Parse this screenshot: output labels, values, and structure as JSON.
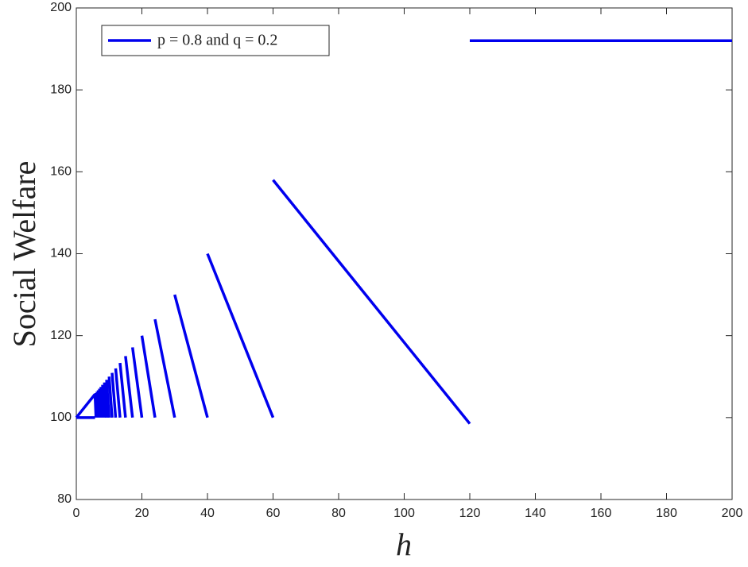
{
  "chart_data": {
    "type": "line",
    "xlabel": "h",
    "ylabel": "Social Welfare",
    "x": [
      0,
      5.71,
      null,
      0,
      5.71,
      null,
      5.71,
      6,
      null,
      6,
      6.32,
      null,
      6.32,
      6.67,
      null,
      6.67,
      7.06,
      null,
      7.06,
      7.5,
      null,
      7.5,
      8,
      null,
      8,
      8.57,
      null,
      8.57,
      9.23,
      null,
      9.23,
      10,
      null,
      10,
      10.91,
      null,
      10.91,
      12,
      null,
      12,
      13.33,
      null,
      13.33,
      15,
      null,
      15,
      17.14,
      null,
      17.14,
      20,
      null,
      20,
      24,
      null,
      24,
      30,
      null,
      30,
      40,
      null,
      40,
      60,
      null,
      60,
      120,
      null,
      120,
      200
    ],
    "series": [
      {
        "name": "p = 0.8 and q = 0.2",
        "color": "#0000ee",
        "values": [
          100,
          105.71,
          null,
          100,
          100,
          null,
          105.71,
          100,
          null,
          106,
          100,
          null,
          106.32,
          100,
          null,
          106.67,
          100,
          null,
          107.06,
          100,
          null,
          107.5,
          100,
          null,
          108,
          100,
          null,
          108.57,
          100,
          null,
          109.23,
          100,
          null,
          110,
          100,
          null,
          110.91,
          100,
          null,
          112,
          100,
          null,
          113.33,
          100,
          null,
          115,
          100,
          null,
          117.14,
          100,
          null,
          120,
          100,
          null,
          124,
          100,
          null,
          130,
          100,
          null,
          140,
          100,
          null,
          158,
          98.5,
          null,
          192,
          192
        ]
      }
    ],
    "xlim": [
      0,
      200
    ],
    "xticks": [
      0,
      20,
      40,
      60,
      80,
      100,
      120,
      140,
      160,
      180,
      200
    ],
    "ylim": [
      80,
      200
    ],
    "yticks": [
      80,
      100,
      120,
      140,
      160,
      180,
      200
    ],
    "legend": "upper-left"
  }
}
